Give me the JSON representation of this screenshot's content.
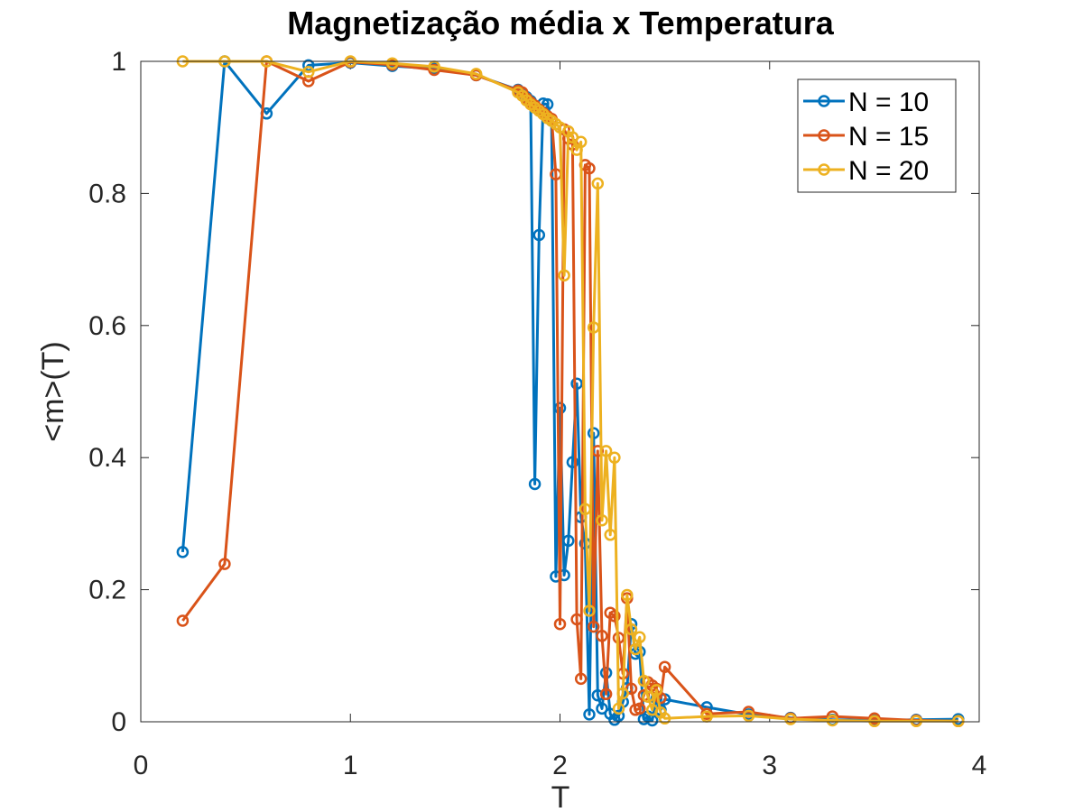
{
  "chart_data": {
    "type": "line",
    "title": "Magnetização média x Temperatura",
    "xlabel": "T",
    "ylabel": "<m>(T)",
    "xlim": [
      0,
      4
    ],
    "ylim": [
      0,
      1
    ],
    "xticks": [
      0,
      1,
      2,
      3,
      4
    ],
    "yticks": [
      0,
      0.2,
      0.4,
      0.6,
      0.8,
      1
    ],
    "xtick_labels": [
      "0",
      "1",
      "2",
      "3",
      "4"
    ],
    "ytick_labels": [
      "0",
      "0.2",
      "0.4",
      "0.6",
      "0.8",
      "1"
    ],
    "grid": false,
    "legend_position": "top-right",
    "series": [
      {
        "name": "N = 10",
        "color": "#0072BD",
        "x": [
          0.2,
          0.4,
          0.6,
          0.8,
          1.0,
          1.2,
          1.4,
          1.6,
          1.8,
          1.82,
          1.84,
          1.86,
          1.88,
          1.9,
          1.92,
          1.94,
          1.96,
          1.98,
          2.0,
          2.02,
          2.04,
          2.06,
          2.08,
          2.1,
          2.12,
          2.14,
          2.16,
          2.18,
          2.2,
          2.22,
          2.24,
          2.26,
          2.28,
          2.3,
          2.32,
          2.34,
          2.36,
          2.38,
          2.4,
          2.42,
          2.44,
          2.46,
          2.48,
          2.5,
          2.7,
          2.9,
          3.1,
          3.3,
          3.5,
          3.7,
          3.9
        ],
        "y": [
          0.257,
          1.0,
          0.921,
          0.994,
          0.998,
          0.993,
          0.989,
          0.979,
          0.957,
          0.952,
          0.946,
          0.94,
          0.36,
          0.737,
          0.936,
          0.935,
          0.91,
          0.22,
          0.475,
          0.222,
          0.274,
          0.393,
          0.512,
          0.31,
          0.27,
          0.011,
          0.437,
          0.04,
          0.02,
          0.074,
          0.012,
          0.003,
          0.009,
          0.03,
          0.051,
          0.148,
          0.103,
          0.106,
          0.004,
          0.008,
          0.002,
          0.035,
          0.018,
          0.034,
          0.022,
          0.011,
          0.006,
          0.003,
          0.002,
          0.003,
          0.004
        ]
      },
      {
        "name": "N = 15",
        "color": "#D95319",
        "x": [
          0.2,
          0.4,
          0.6,
          0.8,
          1.0,
          1.2,
          1.4,
          1.6,
          1.8,
          1.82,
          1.84,
          1.86,
          1.88,
          1.9,
          1.92,
          1.94,
          1.96,
          1.98,
          2.0,
          2.02,
          2.04,
          2.06,
          2.08,
          2.1,
          2.12,
          2.14,
          2.16,
          2.18,
          2.2,
          2.22,
          2.24,
          2.26,
          2.28,
          2.3,
          2.32,
          2.34,
          2.36,
          2.38,
          2.4,
          2.42,
          2.44,
          2.46,
          2.48,
          2.5,
          2.7,
          2.9,
          3.1,
          3.3,
          3.5,
          3.7,
          3.9
        ],
        "y": [
          0.153,
          0.239,
          1.0,
          0.97,
          0.999,
          0.995,
          0.987,
          0.979,
          0.956,
          0.953,
          0.944,
          0.938,
          0.933,
          0.927,
          0.922,
          0.917,
          0.913,
          0.829,
          0.148,
          0.897,
          0.883,
          0.874,
          0.155,
          0.065,
          0.843,
          0.838,
          0.144,
          0.41,
          0.13,
          0.042,
          0.165,
          0.16,
          0.127,
          0.073,
          0.187,
          0.05,
          0.018,
          0.02,
          0.04,
          0.06,
          0.055,
          0.05,
          0.036,
          0.083,
          0.012,
          0.015,
          0.005,
          0.008,
          0.005,
          0.002,
          0.001
        ]
      },
      {
        "name": "N = 20",
        "color": "#EDB120",
        "x": [
          0.2,
          0.4,
          0.6,
          0.8,
          1.0,
          1.2,
          1.4,
          1.6,
          1.8,
          1.82,
          1.84,
          1.86,
          1.88,
          1.9,
          1.92,
          1.94,
          1.96,
          1.98,
          2.0,
          2.02,
          2.04,
          2.06,
          2.08,
          2.1,
          2.12,
          2.14,
          2.16,
          2.18,
          2.2,
          2.22,
          2.24,
          2.26,
          2.28,
          2.3,
          2.32,
          2.34,
          2.36,
          2.38,
          2.4,
          2.42,
          2.44,
          2.46,
          2.48,
          2.5,
          2.7,
          2.9,
          3.1,
          3.3,
          3.5,
          3.7,
          3.9
        ],
        "y": [
          1.0,
          1.0,
          1.0,
          0.984,
          1.0,
          0.997,
          0.992,
          0.981,
          0.953,
          0.948,
          0.941,
          0.935,
          0.93,
          0.925,
          0.92,
          0.914,
          0.91,
          0.905,
          0.9,
          0.676,
          0.894,
          0.885,
          0.866,
          0.878,
          0.322,
          0.168,
          0.597,
          0.815,
          0.305,
          0.41,
          0.283,
          0.4,
          0.02,
          0.043,
          0.192,
          0.14,
          0.11,
          0.128,
          0.062,
          0.038,
          0.018,
          0.048,
          0.014,
          0.005,
          0.008,
          0.009,
          0.004,
          0.002,
          0.001,
          0.001,
          0.001
        ]
      }
    ]
  }
}
